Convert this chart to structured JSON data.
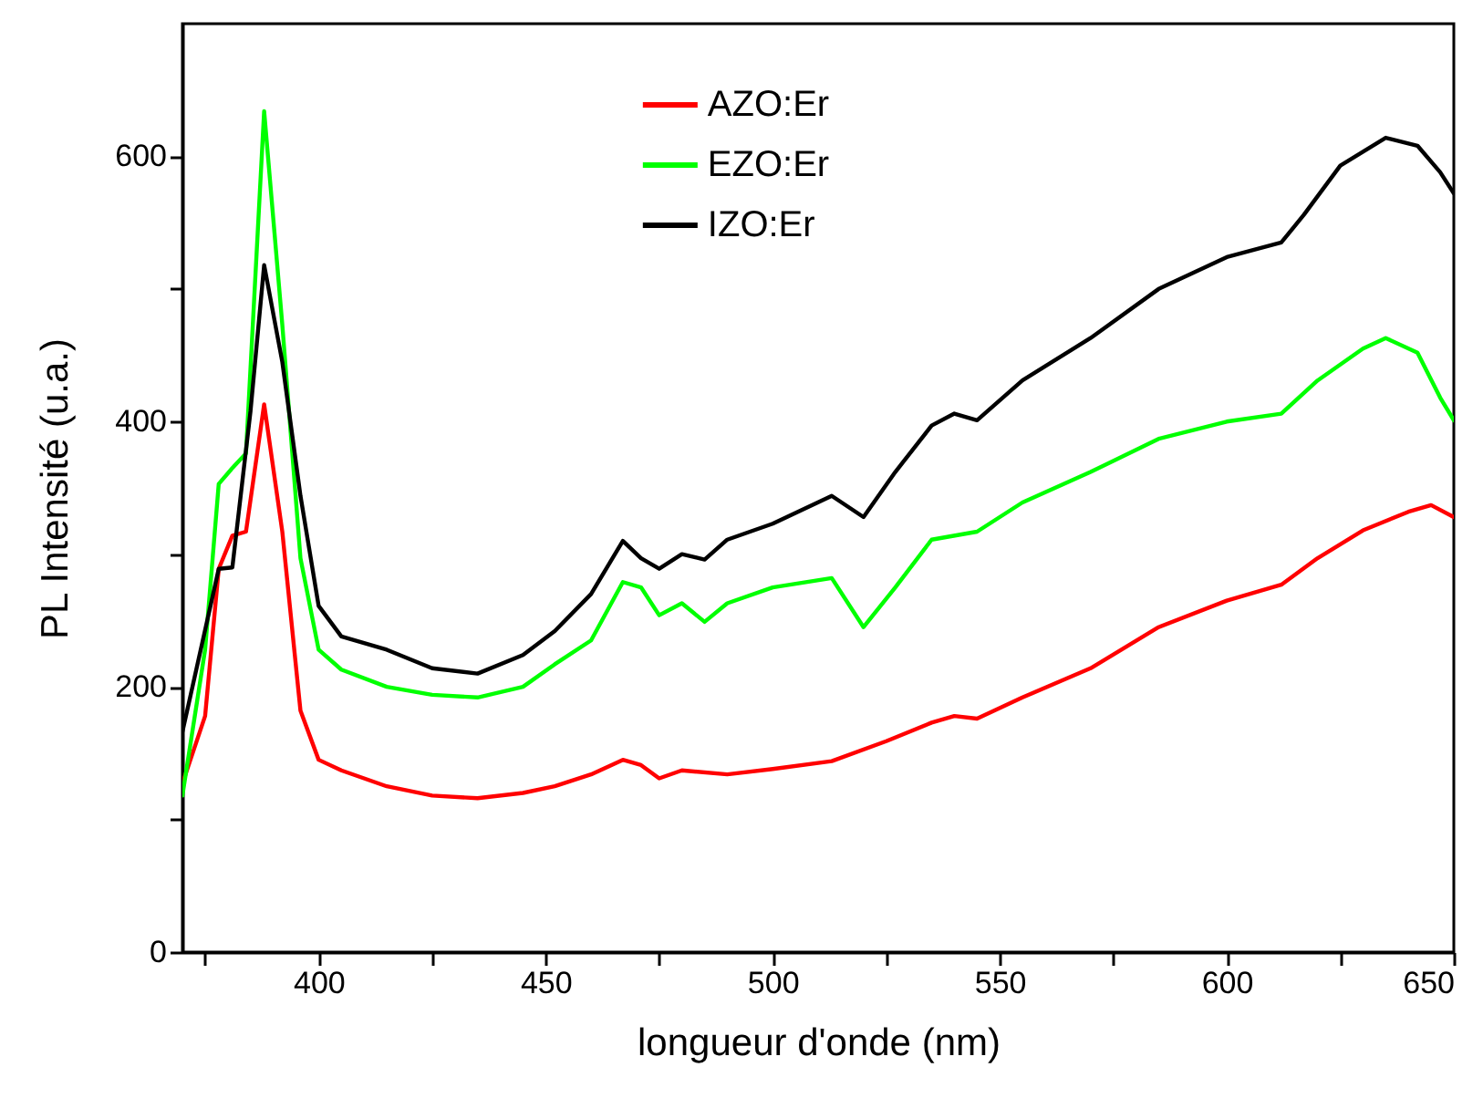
{
  "chart_data": {
    "type": "line",
    "xlabel": "longueur d'onde (nm)",
    "ylabel": "PL Intensité (u.a.)",
    "xlim": [
      370,
      650
    ],
    "xticks": [
      {
        "value": 375,
        "label": null
      },
      400,
      {
        "value": 425,
        "label": null
      },
      450,
      {
        "value": 475,
        "label": null
      },
      500,
      {
        "value": 525,
        "label": null
      },
      550,
      {
        "value": 575,
        "label": null
      },
      600,
      {
        "value": 625,
        "label": null
      },
      650
    ],
    "ylim": [
      0,
      700
    ],
    "yticks": [
      0,
      {
        "value": 100,
        "label": null
      },
      200,
      {
        "value": 300,
        "label": null
      },
      400,
      {
        "value": 500,
        "label": null
      },
      600
    ],
    "grid": false,
    "legend": "top",
    "line_style": "solid",
    "series": [
      {
        "name": "AZO:Er",
        "color": "#ff0000",
        "x": [
          370,
          375,
          378,
          381,
          384,
          388,
          392,
          396,
          400,
          405,
          415,
          425,
          435,
          445,
          452,
          460,
          467,
          471,
          475,
          480,
          490,
          500,
          513,
          525,
          535,
          540,
          545,
          555,
          570,
          585,
          600,
          612,
          620,
          630,
          640,
          645,
          650
        ],
        "values": [
          127,
          178,
          289,
          314,
          317,
          413,
          317,
          182,
          145,
          137,
          125,
          118,
          116,
          120,
          125,
          134,
          145,
          141,
          131,
          137,
          134,
          138,
          144,
          159,
          173,
          178,
          176,
          192,
          214,
          245,
          265,
          277,
          297,
          318,
          332,
          337,
          328
        ]
      },
      {
        "name": "EZO:Er",
        "color": "#00ff00",
        "x": [
          370,
          375,
          378,
          381,
          384,
          388,
          392,
          396,
          400,
          405,
          415,
          425,
          435,
          445,
          452,
          460,
          467,
          471,
          475,
          480,
          485,
          490,
          500,
          513,
          520,
          527,
          535,
          545,
          555,
          570,
          585,
          600,
          612,
          620,
          630,
          635,
          642,
          647,
          650
        ],
        "values": [
          118,
          228,
          353,
          365,
          376,
          634,
          473,
          297,
          228,
          213,
          200,
          194,
          192,
          200,
          217,
          235,
          279,
          275,
          254,
          263,
          249,
          263,
          275,
          282,
          245,
          275,
          311,
          317,
          339,
          362,
          387,
          400,
          406,
          431,
          455,
          463,
          452,
          418,
          401
        ]
      },
      {
        "name": "IZO:Er",
        "color": "#000000",
        "x": [
          370,
          378,
          381,
          385,
          388,
          392,
          396,
          400,
          405,
          415,
          425,
          435,
          445,
          452,
          460,
          467,
          471,
          475,
          480,
          485,
          490,
          500,
          513,
          520,
          527,
          535,
          540,
          545,
          555,
          570,
          585,
          600,
          612,
          617,
          625,
          635,
          642,
          647,
          650
        ],
        "values": [
          166,
          289,
          290,
          408,
          518,
          445,
          344,
          261,
          238,
          228,
          214,
          210,
          224,
          242,
          270,
          310,
          297,
          289,
          300,
          296,
          311,
          323,
          344,
          328,
          362,
          397,
          406,
          401,
          431,
          463,
          500,
          524,
          535,
          556,
          593,
          614,
          608,
          588,
          572
        ]
      }
    ]
  }
}
